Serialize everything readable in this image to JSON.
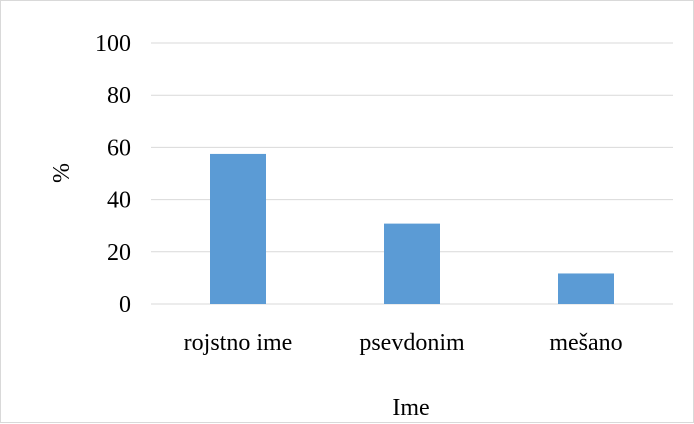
{
  "chart_data": {
    "type": "bar",
    "categories": [
      "rojstno ime",
      "psevdonim",
      "mešano"
    ],
    "values": [
      57.5,
      30.8,
      11.7
    ],
    "title": "",
    "xlabel": "Ime",
    "ylabel": "%",
    "ylim": [
      0,
      100
    ],
    "yticks": [
      0,
      20,
      40,
      60,
      80,
      100
    ],
    "grid": true,
    "legend": "none",
    "colors": {
      "bar": "#5b9bd5",
      "grid": "#d9d9d9",
      "axis": "#d9d9d9"
    }
  }
}
